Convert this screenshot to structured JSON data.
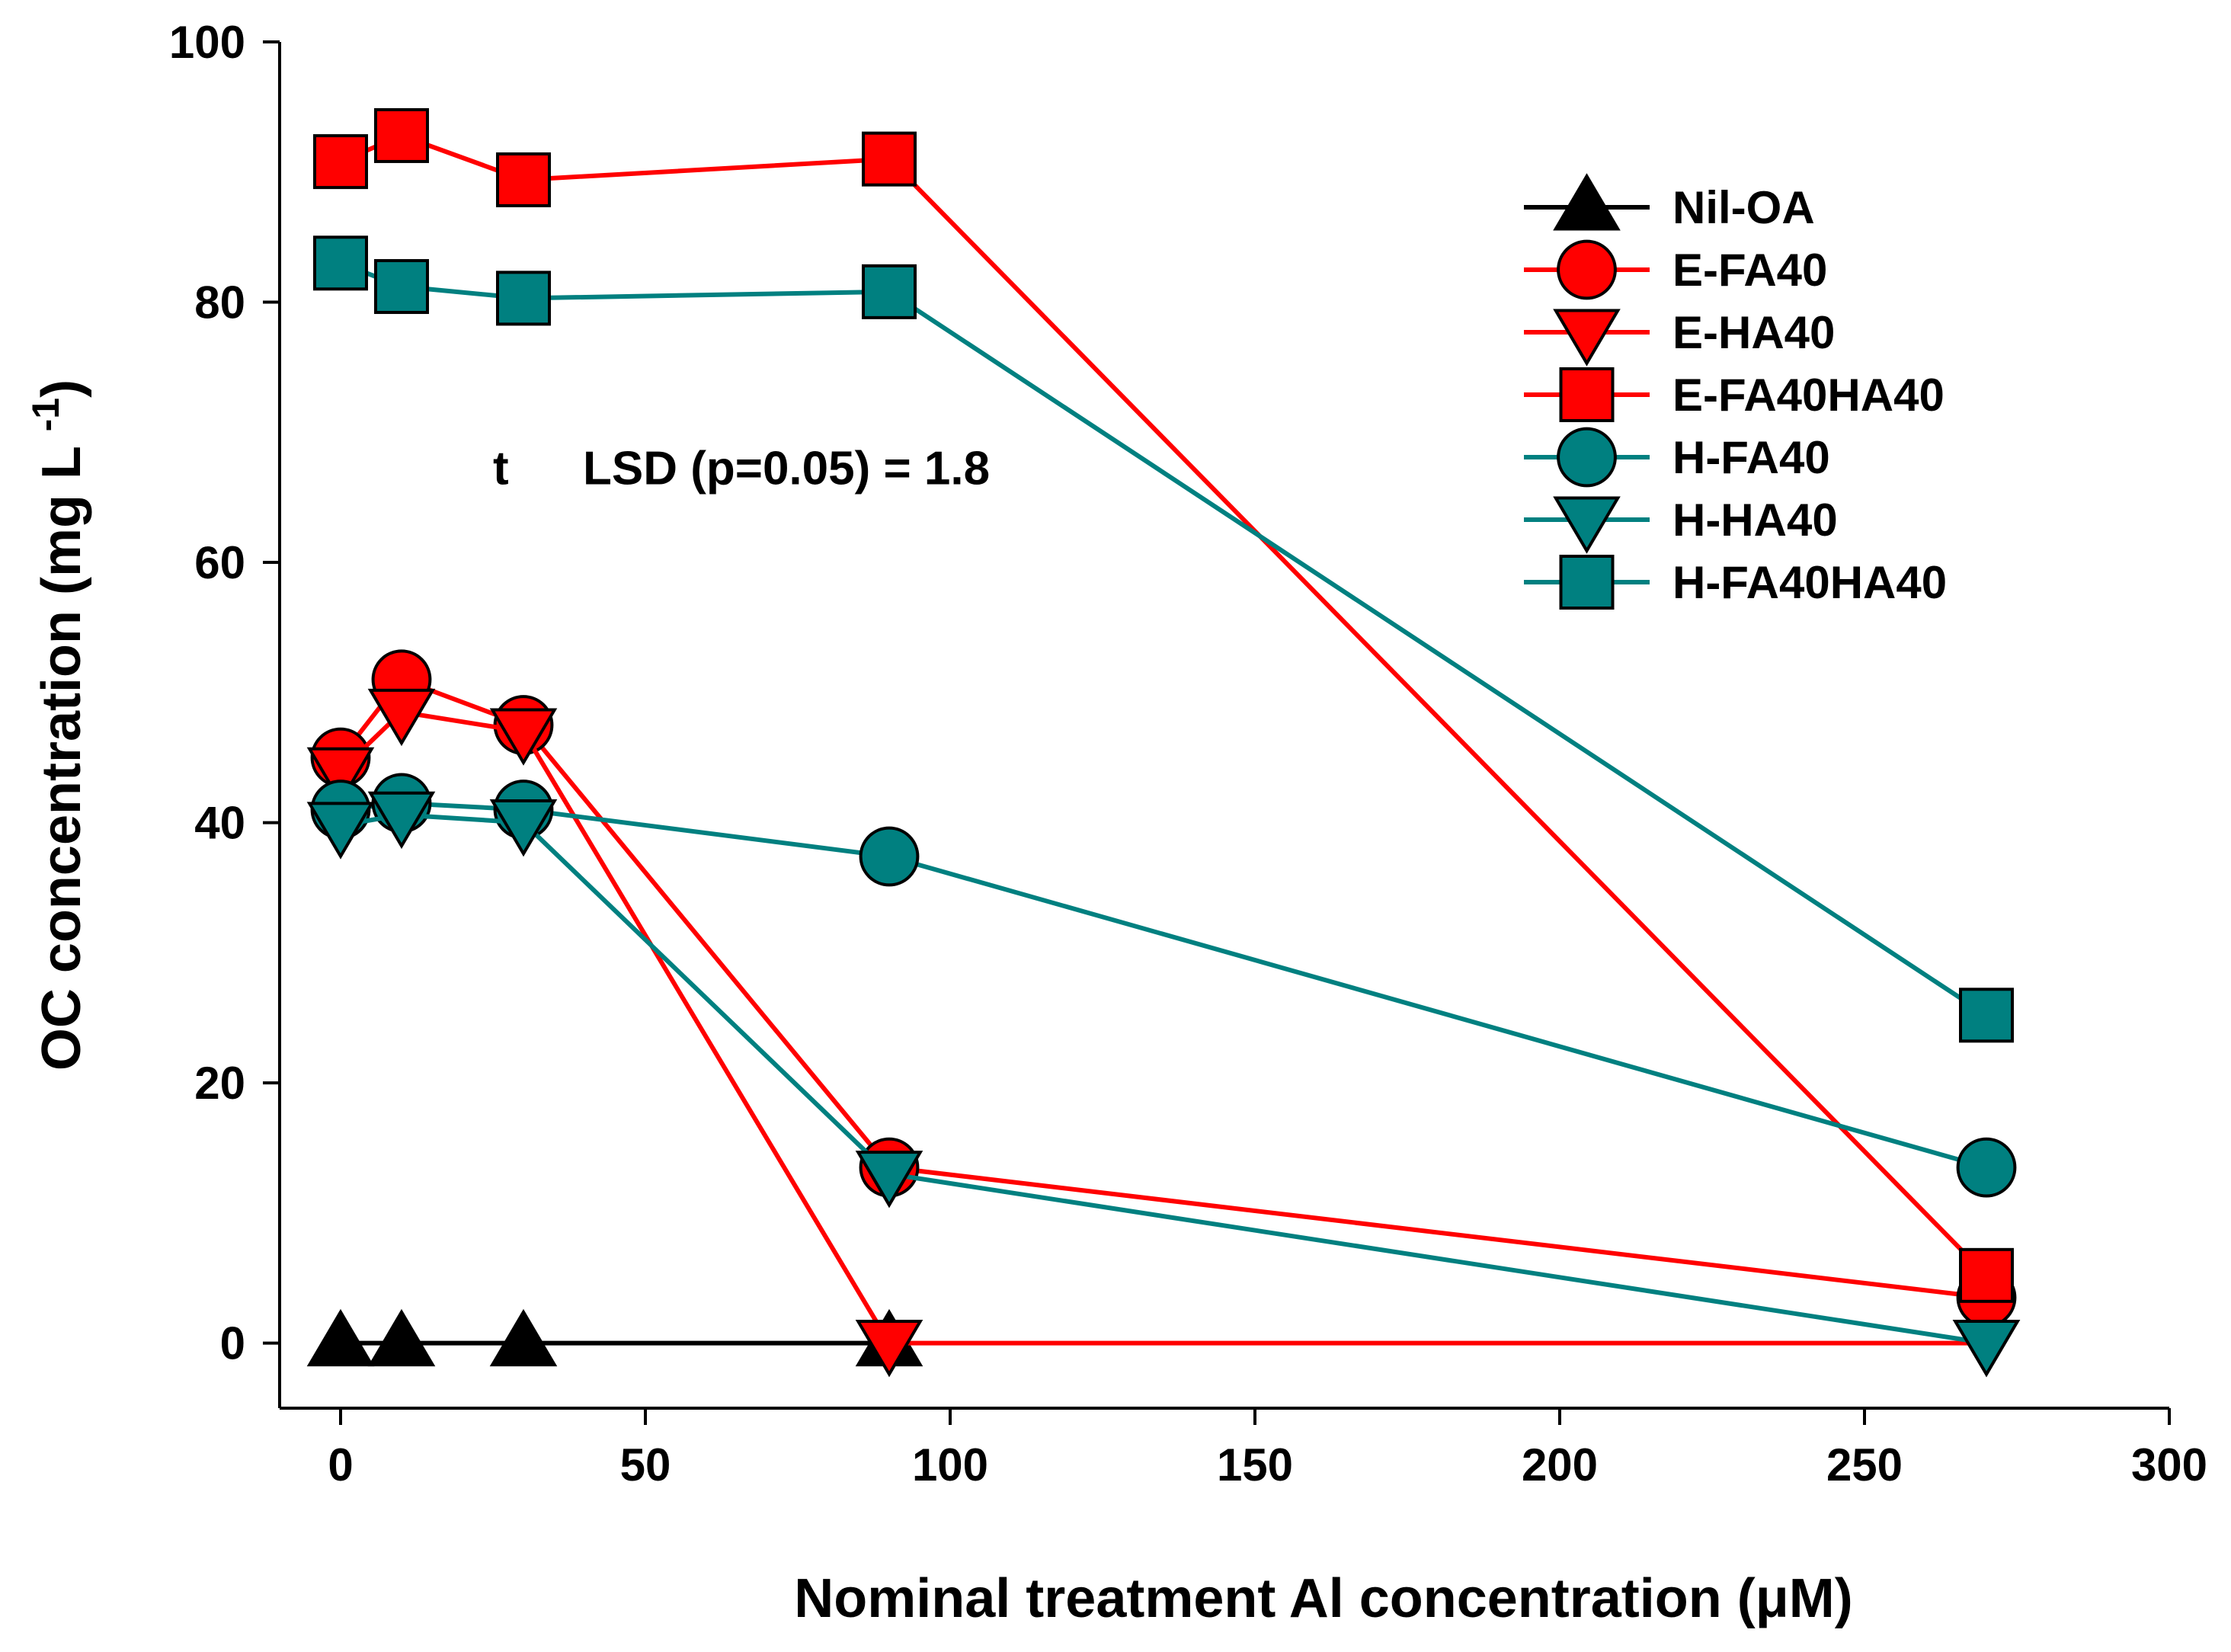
{
  "chart_data": {
    "type": "line",
    "title": "",
    "xlabel": "Nominal treatment Al concentration (μM)",
    "ylabel": "OC concentration (mg L",
    "ylabel_unit_exp": "-1",
    "ylabel_close": ")",
    "xlim": [
      -10,
      300
    ],
    "ylim": [
      -5,
      100
    ],
    "xticks": [
      0,
      50,
      100,
      150,
      200,
      250,
      300
    ],
    "yticks": [
      0,
      20,
      40,
      60,
      80,
      100
    ],
    "grid": false,
    "legend_position": "top-right",
    "annotation": {
      "marker": "t",
      "text": "LSD (p=0.05) = 1.8",
      "x": 25,
      "y": 66
    },
    "x": [
      0,
      10,
      30,
      90,
      270
    ],
    "series": [
      {
        "name": "Nil-OA",
        "marker": "triangle-up",
        "color": "#000000",
        "values": [
          0,
          0,
          0,
          0,
          null
        ]
      },
      {
        "name": "E-FA40",
        "marker": "circle",
        "color": "#ff0000",
        "values": [
          45,
          51,
          47.5,
          13.5,
          3.5
        ]
      },
      {
        "name": "E-HA40",
        "marker": "triangle-down",
        "color": "#ff0000",
        "values": [
          44,
          48.5,
          47,
          0,
          0
        ]
      },
      {
        "name": "E-FA40HA40",
        "marker": "square",
        "color": "#ff0000",
        "values": [
          90.8,
          92.8,
          89.4,
          91,
          5.2
        ]
      },
      {
        "name": "H-FA40",
        "marker": "circle",
        "color": "#008080",
        "values": [
          41,
          41.5,
          41,
          37.4,
          13.5
        ]
      },
      {
        "name": "H-HA40",
        "marker": "triangle-down",
        "color": "#008080",
        "values": [
          39.8,
          40.6,
          40,
          13,
          0
        ]
      },
      {
        "name": "H-FA40HA40",
        "marker": "square",
        "color": "#008080",
        "values": [
          83,
          81.2,
          80.3,
          80.8,
          25.2
        ]
      }
    ]
  }
}
